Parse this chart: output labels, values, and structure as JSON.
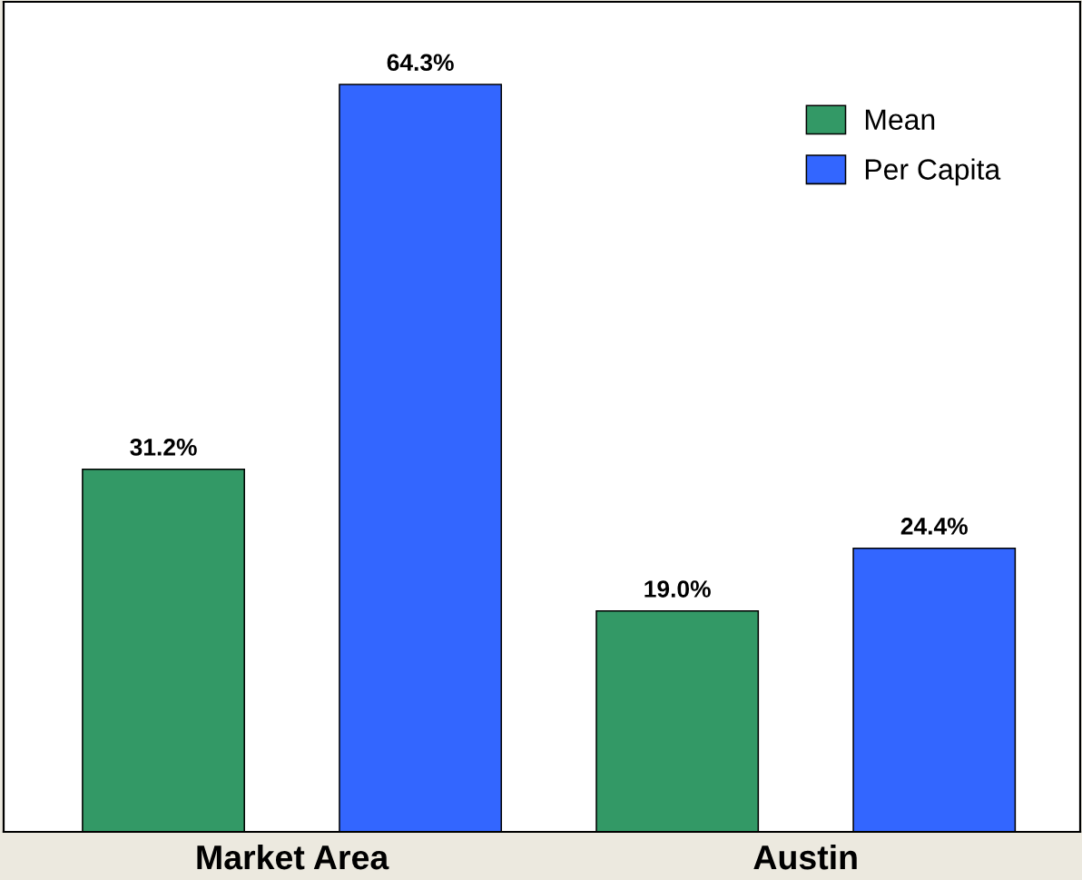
{
  "chart_data": {
    "type": "bar",
    "categories": [
      "Market Area",
      "Austin"
    ],
    "series": [
      {
        "name": "Mean",
        "color": "#339966",
        "values": [
          31.2,
          19.0
        ],
        "value_labels": [
          "31.2%",
          "19.0%"
        ]
      },
      {
        "name": "Per Capita",
        "color": "#3366ff",
        "values": [
          64.3,
          24.4
        ],
        "value_labels": [
          "64.3%",
          "24.4%"
        ]
      }
    ],
    "legend": "top right",
    "tick_labels": "x"
  }
}
